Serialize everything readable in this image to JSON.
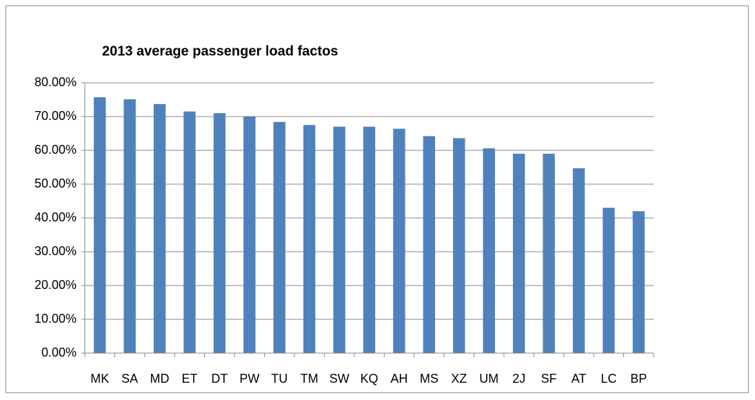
{
  "chart_data": {
    "type": "bar",
    "title": "2013 average passenger load factos",
    "categories": [
      "MK",
      "SA",
      "MD",
      "ET",
      "DT",
      "PW",
      "TU",
      "TM",
      "SW",
      "KQ",
      "AH",
      "MS",
      "XZ",
      "UM",
      "2J",
      "SF",
      "AT",
      "LC",
      "BP"
    ],
    "values": [
      75.7,
      75.1,
      73.7,
      71.5,
      71.0,
      70.0,
      68.4,
      67.5,
      67.0,
      67.0,
      66.4,
      64.2,
      63.6,
      60.6,
      59.0,
      59.0,
      54.7,
      43.0,
      42.0
    ],
    "color": "#4f81bd",
    "ylim": [
      0,
      80
    ],
    "yticks": [
      {
        "value": 0,
        "label": "0.00%"
      },
      {
        "value": 10,
        "label": "10.00%"
      },
      {
        "value": 20,
        "label": "20.00%"
      },
      {
        "value": 30,
        "label": "30.00%"
      },
      {
        "value": 40,
        "label": "40.00%"
      },
      {
        "value": 50,
        "label": "50.00%"
      },
      {
        "value": 60,
        "label": "60.00%"
      },
      {
        "value": 70,
        "label": "70.00%"
      },
      {
        "value": 80,
        "label": "80.00%"
      }
    ],
    "grid": true
  }
}
